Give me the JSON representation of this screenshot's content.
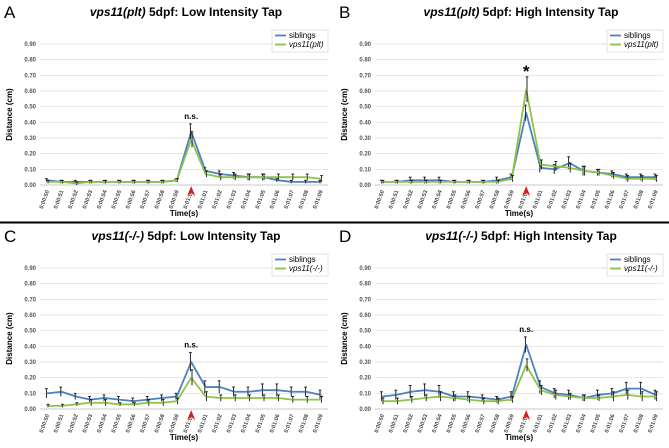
{
  "colors": {
    "siblings": "#4f81bd",
    "mutant": "#8ec24a",
    "arrow": "#d81e1e",
    "grid": "#d9d9d9",
    "error_bar": "#111111"
  },
  "chart_data": [
    {
      "type": "line",
      "panel": "A",
      "title_gene": "vps11(plt)",
      "title_rest": " 5dpf: Low Intensity Tap",
      "xlabel": "Time(s)",
      "ylabel": "Distance (cm)",
      "ylim": [
        0,
        0.9
      ],
      "yticks": [
        "0.00",
        "0.10",
        "0.20",
        "0.30",
        "0.40",
        "0.50",
        "0.60",
        "0.70",
        "0.80",
        "0.90"
      ],
      "categories": [
        "0:00:50",
        "0:00:51",
        "0:00:52",
        "0:00:53",
        "0:00:54",
        "0:00:55",
        "0:00:56",
        "0:00:57",
        "0:00:58",
        "0:00:59",
        "0:01:00",
        "0:01:01",
        "0:01:02",
        "0:01:03",
        "0:01:04",
        "0:01:05",
        "0:01:06",
        "0:01:07",
        "0:01:08",
        "0:01:09"
      ],
      "grid": true,
      "legend_position": "top-right",
      "annotation": "n.s.",
      "stimulus_marker_at": "0:01:00",
      "series": [
        {
          "name": "siblings",
          "color_key": "siblings",
          "values": [
            0.03,
            0.02,
            0.02,
            0.02,
            0.02,
            0.02,
            0.02,
            0.02,
            0.02,
            0.03,
            0.34,
            0.09,
            0.07,
            0.06,
            0.05,
            0.05,
            0.03,
            0.02,
            0.02,
            0.02
          ],
          "errors": [
            0.01,
            0.01,
            0.01,
            0.01,
            0.01,
            0.01,
            0.01,
            0.01,
            0.01,
            0.01,
            0.05,
            0.02,
            0.02,
            0.02,
            0.02,
            0.02,
            0.01,
            0.01,
            0.01,
            0.01
          ]
        },
        {
          "name": "vps11(plt)",
          "color_key": "mutant",
          "values": [
            0.02,
            0.02,
            0.01,
            0.02,
            0.02,
            0.02,
            0.02,
            0.02,
            0.02,
            0.03,
            0.29,
            0.07,
            0.05,
            0.05,
            0.05,
            0.05,
            0.05,
            0.05,
            0.05,
            0.04
          ],
          "errors": [
            0.01,
            0.01,
            0.01,
            0.01,
            0.01,
            0.01,
            0.01,
            0.01,
            0.01,
            0.01,
            0.05,
            0.02,
            0.02,
            0.02,
            0.02,
            0.02,
            0.02,
            0.02,
            0.02,
            0.02
          ]
        }
      ]
    },
    {
      "type": "line",
      "panel": "B",
      "title_gene": "vps11(plt)",
      "title_rest": " 5dpf: High Intensity Tap",
      "xlabel": "Time(s)",
      "ylabel": "Distance (cm)",
      "ylim": [
        0,
        0.9
      ],
      "yticks": [
        "0.00",
        "0.10",
        "0.20",
        "0.30",
        "0.40",
        "0.50",
        "0.60",
        "0.70",
        "0.80",
        "0.90"
      ],
      "categories": [
        "0:00:50",
        "0:00:51",
        "0:00:52",
        "0:00:53",
        "0:00:54",
        "0:00:55",
        "0:00:56",
        "0:00:57",
        "0:00:58",
        "0:00:59",
        "0:01:00",
        "0:01:01",
        "0:01:02",
        "0:01:03",
        "0:01:04",
        "0:01:05",
        "0:01:06",
        "0:01:07",
        "0:01:08",
        "0:01:09"
      ],
      "grid": true,
      "legend_position": "top-right",
      "annotation": "*",
      "stimulus_marker_at": "0:01:00",
      "series": [
        {
          "name": "siblings",
          "color_key": "siblings",
          "values": [
            0.02,
            0.02,
            0.03,
            0.03,
            0.03,
            0.02,
            0.02,
            0.02,
            0.03,
            0.05,
            0.46,
            0.11,
            0.1,
            0.14,
            0.09,
            0.08,
            0.07,
            0.05,
            0.05,
            0.05
          ],
          "errors": [
            0.01,
            0.01,
            0.02,
            0.02,
            0.02,
            0.01,
            0.01,
            0.01,
            0.02,
            0.02,
            0.05,
            0.03,
            0.03,
            0.04,
            0.03,
            0.02,
            0.02,
            0.02,
            0.02,
            0.02
          ]
        },
        {
          "name": "vps11(plt)",
          "color_key": "mutant",
          "values": [
            0.02,
            0.02,
            0.02,
            0.02,
            0.02,
            0.02,
            0.02,
            0.02,
            0.02,
            0.04,
            0.61,
            0.13,
            0.12,
            0.11,
            0.09,
            0.08,
            0.06,
            0.04,
            0.04,
            0.04
          ],
          "errors": [
            0.01,
            0.01,
            0.01,
            0.01,
            0.01,
            0.01,
            0.01,
            0.01,
            0.01,
            0.02,
            0.08,
            0.03,
            0.03,
            0.03,
            0.03,
            0.02,
            0.02,
            0.02,
            0.02,
            0.02
          ]
        }
      ]
    },
    {
      "type": "line",
      "panel": "C",
      "title_gene": "vps11(-/-)",
      "title_rest": " 5dpf: Low Intensity Tap",
      "xlabel": "Time(s)",
      "ylabel": "Distance (cm)",
      "ylim": [
        0,
        0.9
      ],
      "yticks": [
        "0.00",
        "0.10",
        "0.20",
        "0.30",
        "0.40",
        "0.50",
        "0.60",
        "0.70",
        "0.80",
        "0.90"
      ],
      "categories": [
        "0:00:50",
        "0:00:51",
        "0:00:52",
        "0:00:53",
        "0:00:54",
        "0:00:55",
        "0:00:56",
        "0:00:57",
        "0:00:58",
        "0:00:59",
        "0:01:00",
        "0:01:01",
        "0:01:02",
        "0:01:03",
        "0:01:04",
        "0:01:05",
        "0:01:06",
        "0:01:07",
        "0:01:08",
        "0:01:09"
      ],
      "grid": true,
      "legend_position": "top-right",
      "annotation": "n.s.",
      "stimulus_marker_at": "0:01:00",
      "series": [
        {
          "name": "siblings",
          "color_key": "siblings",
          "values": [
            0.1,
            0.11,
            0.08,
            0.06,
            0.07,
            0.06,
            0.05,
            0.06,
            0.07,
            0.08,
            0.3,
            0.14,
            0.14,
            0.11,
            0.11,
            0.12,
            0.12,
            0.11,
            0.11,
            0.09
          ],
          "errors": [
            0.03,
            0.03,
            0.02,
            0.02,
            0.02,
            0.02,
            0.02,
            0.02,
            0.02,
            0.02,
            0.06,
            0.04,
            0.04,
            0.03,
            0.03,
            0.04,
            0.04,
            0.03,
            0.03,
            0.03
          ]
        },
        {
          "name": "vps11(-/-)",
          "color_key": "mutant",
          "values": [
            0.02,
            0.02,
            0.03,
            0.04,
            0.04,
            0.03,
            0.03,
            0.04,
            0.04,
            0.05,
            0.2,
            0.08,
            0.07,
            0.07,
            0.07,
            0.07,
            0.07,
            0.06,
            0.06,
            0.06
          ],
          "errors": [
            0.01,
            0.01,
            0.01,
            0.02,
            0.02,
            0.01,
            0.01,
            0.02,
            0.02,
            0.02,
            0.05,
            0.03,
            0.02,
            0.02,
            0.02,
            0.02,
            0.02,
            0.02,
            0.02,
            0.02
          ]
        }
      ]
    },
    {
      "type": "line",
      "panel": "D",
      "title_gene": "vps11(-/-)",
      "title_rest": " 5dpf: High Intensity Tap",
      "xlabel": "Time(s)",
      "ylabel": "Distance (cm)",
      "ylim": [
        0,
        0.9
      ],
      "yticks": [
        "0.00",
        "0.10",
        "0.20",
        "0.30",
        "0.40",
        "0.50",
        "0.60",
        "0.70",
        "0.80",
        "0.90"
      ],
      "categories": [
        "0:00:50",
        "0:00:51",
        "0:00:52",
        "0:00:53",
        "0:00:54",
        "0:00:55",
        "0:00:56",
        "0:00:57",
        "0:00:58",
        "0:00:59",
        "0:01:00",
        "0:01:01",
        "0:01:02",
        "0:01:03",
        "0:01:04",
        "0:01:05",
        "0:01:06",
        "0:01:07",
        "0:01:08",
        "0:01:09"
      ],
      "grid": true,
      "legend_position": "top-right",
      "annotation": "n.s.",
      "stimulus_marker_at": "0:01:00",
      "series": [
        {
          "name": "siblings",
          "color_key": "siblings",
          "values": [
            0.08,
            0.09,
            0.11,
            0.12,
            0.11,
            0.08,
            0.08,
            0.07,
            0.06,
            0.08,
            0.41,
            0.14,
            0.1,
            0.09,
            0.07,
            0.09,
            0.1,
            0.13,
            0.13,
            0.09
          ],
          "errors": [
            0.03,
            0.03,
            0.04,
            0.04,
            0.04,
            0.03,
            0.03,
            0.02,
            0.02,
            0.03,
            0.05,
            0.04,
            0.03,
            0.03,
            0.02,
            0.03,
            0.03,
            0.04,
            0.04,
            0.03
          ]
        },
        {
          "name": "vps11(-/-)",
          "color_key": "mutant",
          "values": [
            0.05,
            0.05,
            0.06,
            0.07,
            0.08,
            0.07,
            0.06,
            0.05,
            0.05,
            0.06,
            0.28,
            0.12,
            0.09,
            0.08,
            0.07,
            0.07,
            0.08,
            0.09,
            0.08,
            0.08
          ],
          "errors": [
            0.02,
            0.02,
            0.02,
            0.02,
            0.03,
            0.02,
            0.02,
            0.02,
            0.02,
            0.02,
            0.04,
            0.03,
            0.03,
            0.02,
            0.02,
            0.02,
            0.03,
            0.03,
            0.03,
            0.03
          ]
        }
      ]
    }
  ]
}
